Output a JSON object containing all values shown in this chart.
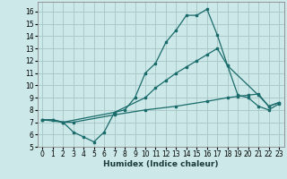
{
  "xlabel": "Humidex (Indice chaleur)",
  "bg_color": "#cce8e8",
  "grid_color": "#aacaca",
  "line_color": "#1a6b6b",
  "xlim": [
    -0.5,
    23.5
  ],
  "ylim": [
    5,
    16.8
  ],
  "xticks": [
    0,
    1,
    2,
    3,
    4,
    5,
    6,
    7,
    8,
    9,
    10,
    11,
    12,
    13,
    14,
    15,
    16,
    17,
    18,
    19,
    20,
    21,
    22,
    23
  ],
  "yticks": [
    5,
    6,
    7,
    8,
    9,
    10,
    11,
    12,
    13,
    14,
    15,
    16
  ],
  "line1_x": [
    0,
    1,
    2,
    3,
    4,
    5,
    6,
    7,
    8,
    9,
    10,
    11,
    12,
    13,
    14,
    15,
    16,
    17,
    18,
    19,
    20,
    21,
    22,
    23
  ],
  "line1_y": [
    7.2,
    7.2,
    7.0,
    6.2,
    5.8,
    5.4,
    6.2,
    7.8,
    8.0,
    9.0,
    11.0,
    11.8,
    13.5,
    14.5,
    15.7,
    15.7,
    16.2,
    14.1,
    11.6,
    9.2,
    9.0,
    8.3,
    8.0,
    8.5
  ],
  "line2_x": [
    0,
    2,
    7,
    10,
    11,
    12,
    13,
    14,
    15,
    16,
    17,
    18,
    21,
    22,
    23
  ],
  "line2_y": [
    7.2,
    7.0,
    7.8,
    9.0,
    9.8,
    10.4,
    11.0,
    11.5,
    12.0,
    12.5,
    13.0,
    11.6,
    9.2,
    8.3,
    8.6
  ],
  "line3_x": [
    0,
    1,
    2,
    3,
    7,
    10,
    13,
    16,
    18,
    19,
    20,
    21,
    22,
    23
  ],
  "line3_y": [
    7.2,
    7.2,
    7.0,
    7.0,
    7.6,
    8.0,
    8.3,
    8.7,
    9.0,
    9.1,
    9.2,
    9.3,
    8.3,
    8.6
  ]
}
